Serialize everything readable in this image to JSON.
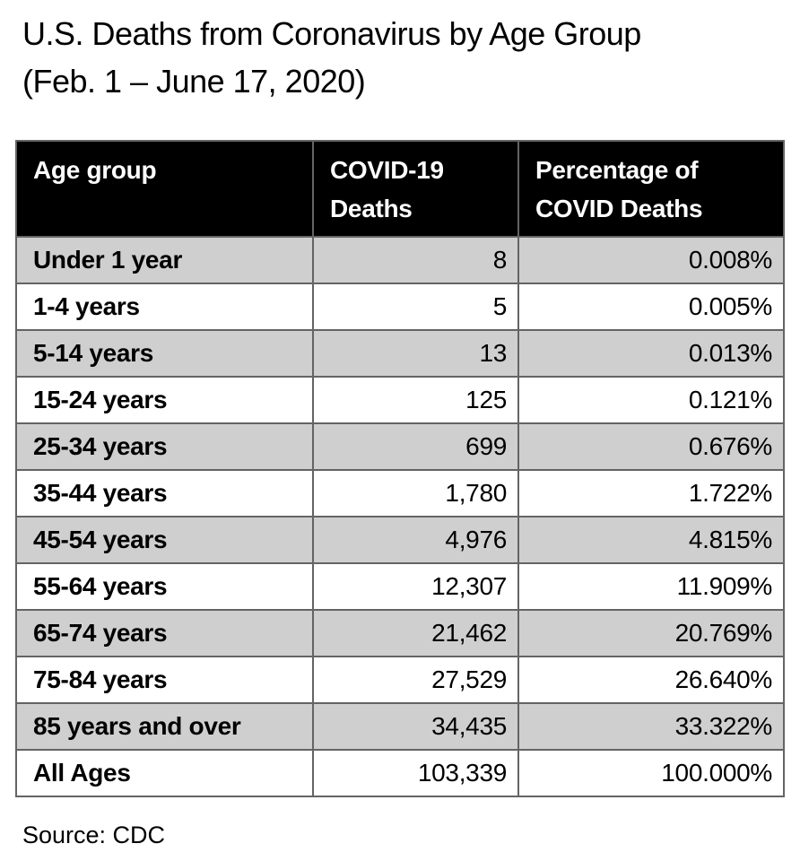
{
  "title": {
    "line1": "U.S. Deaths from Coronavirus by Age Group",
    "line2": "(Feb. 1 – June 17, 2020)"
  },
  "table": {
    "headers": [
      "Age group",
      "COVID-19 Deaths",
      "Percentage of COVID Deaths"
    ],
    "rows": [
      {
        "age": "Under 1 year",
        "deaths": "8",
        "percentage": "0.008%"
      },
      {
        "age": "1-4 years",
        "deaths": "5",
        "percentage": "0.005%"
      },
      {
        "age": "5-14 years",
        "deaths": "13",
        "percentage": "0.013%"
      },
      {
        "age": "15-24 years",
        "deaths": "125",
        "percentage": "0.121%"
      },
      {
        "age": "25-34 years",
        "deaths": "699",
        "percentage": "0.676%"
      },
      {
        "age": "35-44 years",
        "deaths": "1,780",
        "percentage": "1.722%"
      },
      {
        "age": "45-54 years",
        "deaths": "4,976",
        "percentage": "4.815%"
      },
      {
        "age": "55-64 years",
        "deaths": "12,307",
        "percentage": "11.909%"
      },
      {
        "age": "65-74 years",
        "deaths": "21,462",
        "percentage": "20.769%"
      },
      {
        "age": "75-84 years",
        "deaths": "27,529",
        "percentage": "26.640%"
      },
      {
        "age": "85 years and over",
        "deaths": "34,435",
        "percentage": "33.322%"
      },
      {
        "age": "All Ages",
        "deaths": "103,339",
        "percentage": "100.000%"
      }
    ]
  },
  "source": "Source: CDC",
  "colors": {
    "header_bg": "#000000",
    "header_text": "#ffffff",
    "row_shaded": "#cfcfcf",
    "row_plain": "#ffffff",
    "border": "#646464"
  },
  "chart_data": {
    "type": "table",
    "title": "U.S. Deaths from Coronavirus by Age Group (Feb. 1 – June 17, 2020)",
    "columns": [
      "Age group",
      "COVID-19 Deaths",
      "Percentage of COVID Deaths"
    ],
    "categories": [
      "Under 1 year",
      "1-4 years",
      "5-14 years",
      "15-24 years",
      "25-34 years",
      "35-44 years",
      "45-54 years",
      "55-64 years",
      "65-74 years",
      "75-84 years",
      "85 years and over",
      "All Ages"
    ],
    "series": [
      {
        "name": "COVID-19 Deaths",
        "values": [
          8,
          5,
          13,
          125,
          699,
          1780,
          4976,
          12307,
          21462,
          27529,
          34435,
          103339
        ]
      },
      {
        "name": "Percentage of COVID Deaths",
        "values": [
          0.008,
          0.005,
          0.013,
          0.121,
          0.676,
          1.722,
          4.815,
          11.909,
          20.769,
          26.64,
          33.322,
          100.0
        ]
      }
    ],
    "source": "Source: CDC",
    "layout": {
      "shading": "alternating rows, gray first",
      "header_style": "white on black"
    }
  }
}
